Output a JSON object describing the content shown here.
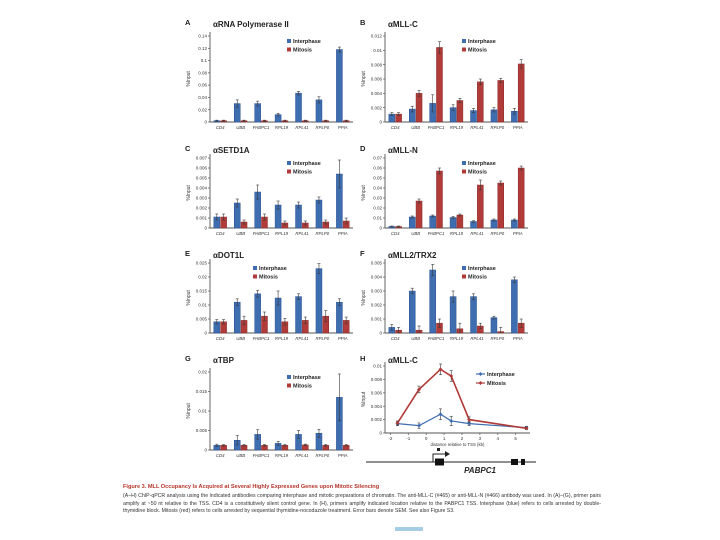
{
  "page": {
    "background": "#ffffff"
  },
  "colors": {
    "interphase": "#3e6db0",
    "interphase_edge": "#2a5190",
    "mitosis": "#b03b38",
    "mitosis_edge": "#8a2c2a",
    "axis": "#555555",
    "error_bar": "#3a3a3a",
    "caption_title": "#b5342a",
    "text": "#222222"
  },
  "legend": {
    "interphase": "Interphase",
    "mitosis": "Mitosis"
  },
  "chart_data": [
    {
      "panel": "A",
      "type": "bar",
      "title": "αRNA Polymerase II",
      "ylabel": "%Input",
      "ylim": [
        0,
        0.14
      ],
      "ytick_step": 0.02,
      "categories": [
        "CD4",
        "UBB",
        "PABPC1",
        "RPL19",
        "RPL41",
        "RPLP0",
        "PPIA"
      ],
      "series": [
        {
          "name": "Interphase",
          "values": [
            0.002,
            0.03,
            0.03,
            0.012,
            0.047,
            0.036,
            0.118
          ],
          "errors": [
            0.001,
            0.006,
            0.004,
            0.002,
            0.003,
            0.005,
            0.004
          ]
        },
        {
          "name": "Mitosis",
          "values": [
            0.002,
            0.002,
            0.002,
            0.002,
            0.002,
            0.002,
            0.002
          ],
          "errors": [
            0.001,
            0.001,
            0.001,
            0.001,
            0.001,
            0.001,
            0.001
          ]
        }
      ]
    },
    {
      "panel": "B",
      "type": "bar",
      "title": "αMLL-C",
      "ylabel": "%Input",
      "ylim": [
        0,
        0.012
      ],
      "ytick_step": 0.002,
      "categories": [
        "CD4",
        "UBB",
        "PABPC1",
        "RPL19",
        "RPL41",
        "RPLP0",
        "PPIA"
      ],
      "series": [
        {
          "name": "Interphase",
          "values": [
            0.0011,
            0.0018,
            0.0026,
            0.002,
            0.0016,
            0.0017,
            0.0015
          ],
          "errors": [
            0.0002,
            0.0004,
            0.0012,
            0.0004,
            0.0003,
            0.0003,
            0.0004
          ]
        },
        {
          "name": "Mitosis",
          "values": [
            0.0011,
            0.004,
            0.0104,
            0.003,
            0.0056,
            0.0058,
            0.0081
          ],
          "errors": [
            0.0002,
            0.0004,
            0.0008,
            0.0003,
            0.0004,
            0.0003,
            0.0006
          ]
        }
      ]
    },
    {
      "panel": "C",
      "type": "bar",
      "title": "αSETD1A",
      "ylabel": "%Input",
      "ylim": [
        0,
        0.007
      ],
      "ytick_step": 0.001,
      "categories": [
        "CD4",
        "UBB",
        "PABPC1",
        "RPL19",
        "RPL41",
        "RPLP0",
        "PPIA"
      ],
      "series": [
        {
          "name": "Interphase",
          "values": [
            0.0011,
            0.0025,
            0.0036,
            0.0023,
            0.0023,
            0.0028,
            0.0054
          ],
          "errors": [
            0.0003,
            0.0004,
            0.0007,
            0.0004,
            0.0003,
            0.0003,
            0.0014
          ]
        },
        {
          "name": "Mitosis",
          "values": [
            0.0011,
            0.0006,
            0.0011,
            0.0005,
            0.0005,
            0.0006,
            0.0007
          ],
          "errors": [
            0.0003,
            0.0002,
            0.0003,
            0.0002,
            0.0002,
            0.0002,
            0.0003
          ]
        }
      ]
    },
    {
      "panel": "D",
      "type": "bar",
      "title": "αMLL-N",
      "ylabel": "%Input",
      "ylim": [
        0,
        0.07
      ],
      "ytick_step": 0.01,
      "categories": [
        "CD4",
        "UBB",
        "PABPC1",
        "RPL19",
        "RPL41",
        "RPLP0",
        "PPIA"
      ],
      "series": [
        {
          "name": "Interphase",
          "values": [
            0.0015,
            0.011,
            0.012,
            0.0105,
            0.0065,
            0.008,
            0.008
          ],
          "errors": [
            0.0005,
            0.001,
            0.001,
            0.001,
            0.0008,
            0.001,
            0.001
          ]
        },
        {
          "name": "Mitosis",
          "values": [
            0.0015,
            0.027,
            0.057,
            0.013,
            0.043,
            0.045,
            0.06
          ],
          "errors": [
            0.0005,
            0.002,
            0.003,
            0.001,
            0.005,
            0.002,
            0.002
          ]
        }
      ]
    },
    {
      "panel": "E",
      "type": "bar",
      "title": "αDOT1L",
      "ylabel": "%Input",
      "ylim": [
        0,
        0.025
      ],
      "ytick_step": 0.005,
      "categories": [
        "CD4",
        "UBB",
        "PABPC1",
        "RPL19",
        "RPL41",
        "RPLP0",
        "PPIA"
      ],
      "series": [
        {
          "name": "Interphase",
          "values": [
            0.004,
            0.011,
            0.014,
            0.0125,
            0.013,
            0.023,
            0.011
          ],
          "errors": [
            0.0008,
            0.0012,
            0.0012,
            0.0025,
            0.001,
            0.0018,
            0.0012
          ]
        },
        {
          "name": "Mitosis",
          "values": [
            0.004,
            0.0045,
            0.006,
            0.004,
            0.0045,
            0.006,
            0.0045
          ],
          "errors": [
            0.0008,
            0.0015,
            0.0015,
            0.0012,
            0.0012,
            0.002,
            0.0012
          ]
        }
      ]
    },
    {
      "panel": "F",
      "type": "bar",
      "title": "αMLL2/TRX2",
      "ylabel": "%Input",
      "ylim": [
        0,
        0.005
      ],
      "ytick_step": 0.001,
      "categories": [
        "CD4",
        "UBB",
        "PABPC1",
        "RPL19",
        "RPL41",
        "RPLP0",
        "PPIA"
      ],
      "series": [
        {
          "name": "Interphase",
          "values": [
            0.0004,
            0.003,
            0.0045,
            0.0026,
            0.0026,
            0.0011,
            0.0038
          ],
          "errors": [
            0.0002,
            0.0002,
            0.0004,
            0.0004,
            0.0002,
            0.0001,
            0.0002
          ]
        },
        {
          "name": "Mitosis",
          "values": [
            0.0002,
            0.0002,
            0.0007,
            0.0003,
            0.0005,
            0.0001,
            0.0007
          ],
          "errors": [
            0.0002,
            0.0003,
            0.0003,
            0.0004,
            0.0002,
            0.0003,
            0.0003
          ]
        }
      ]
    },
    {
      "panel": "G",
      "type": "bar",
      "title": "αTBP",
      "ylabel": "%Input",
      "ylim": [
        0,
        0.02
      ],
      "ytick_step": 0.005,
      "categories": [
        "CD4",
        "UBB",
        "PABPC1",
        "RPL19",
        "RPL41",
        "RPLP0",
        "PPIA"
      ],
      "series": [
        {
          "name": "Interphase",
          "values": [
            0.0012,
            0.0025,
            0.004,
            0.0017,
            0.004,
            0.0043,
            0.0135
          ],
          "errors": [
            0.0003,
            0.0012,
            0.0012,
            0.0005,
            0.001,
            0.001,
            0.006
          ]
        },
        {
          "name": "Mitosis",
          "values": [
            0.0012,
            0.0012,
            0.0012,
            0.0012,
            0.0013,
            0.0012,
            0.0012
          ],
          "errors": [
            0.0002,
            0.0002,
            0.0002,
            0.0002,
            0.0002,
            0.0002,
            0.0002
          ]
        }
      ]
    },
    {
      "panel": "H",
      "type": "line",
      "title": "αMLL-C",
      "ylabel": "%Input",
      "xlabel": "distance relative to TSS (kb)",
      "ylim": [
        0,
        0.01
      ],
      "ytick_step": 0.002,
      "xlim": [
        -2.3,
        5.8
      ],
      "xticks": [
        -2,
        -1,
        0,
        1,
        2,
        3,
        4,
        5
      ],
      "x": [
        -1.6,
        -0.4,
        0.8,
        1.4,
        2.4,
        5.6
      ],
      "series": [
        {
          "name": "Interphase",
          "values": [
            0.0014,
            0.0011,
            0.0028,
            0.0018,
            0.0014,
            0.0008
          ],
          "errors": [
            0.0003,
            0.0004,
            0.0008,
            0.0007,
            0.0003,
            0.0002
          ]
        },
        {
          "name": "Mitosis",
          "values": [
            0.0015,
            0.0065,
            0.0095,
            0.0085,
            0.002,
            0.0007
          ],
          "errors": [
            0.0003,
            0.0005,
            0.0008,
            0.0008,
            0.0004,
            0.0002
          ]
        }
      ],
      "gene_label": "PABPC1"
    }
  ],
  "caption": {
    "title": "Figure 3. MLL Occupancy Is Acquired at Several Highly Expressed Genes upon Mitotic Silencing",
    "body": "(A–H) ChIP-qPCR analysis using the indicated antibodies comparing interphase and mitotic preparations of chromatin. The anti-MLL-C (#465) or anti-MLL-N (#466) antibody was used. In (A)–(G), primer pairs amplify at ~50 nt relative to the TSS. CD4 is a constitutively silent control gene. In (H), primers amplify indicated location relative to the PABPC1 TSS. Interphase (blue) refers to cells arrested by double-thymidine block. Mitosis (red) refers to cells arrested by sequential thymidine-nocodazole treatment. Error bars denote SEM. See also Figure S3."
  }
}
